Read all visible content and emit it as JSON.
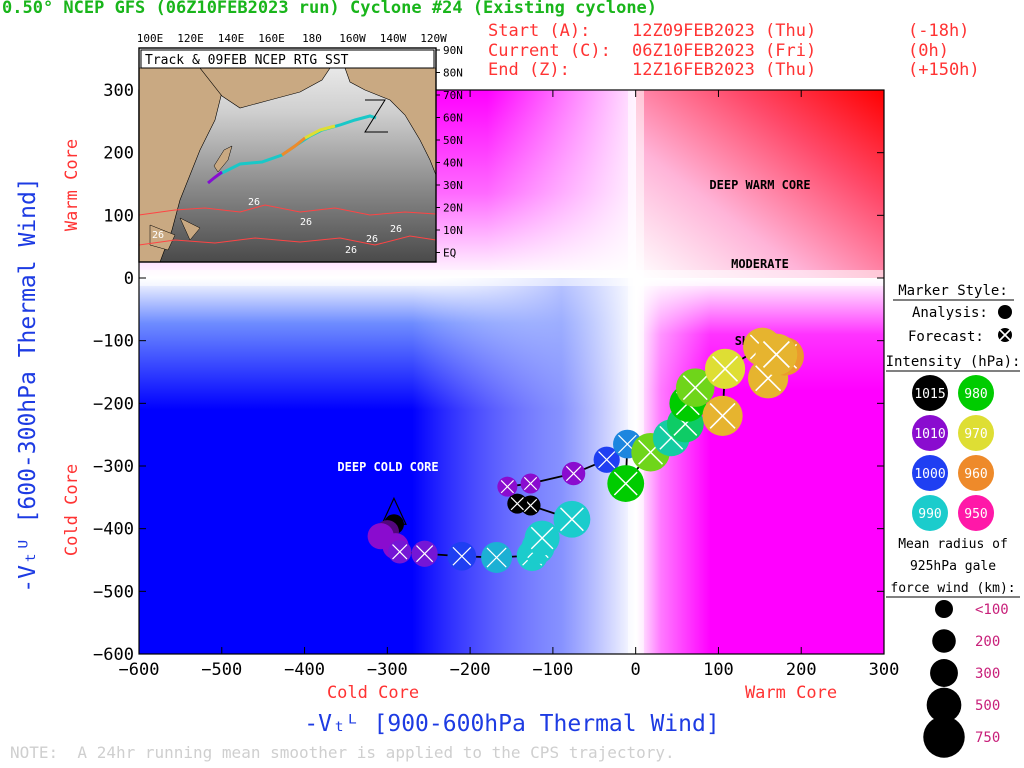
{
  "header": {
    "title": "0.50° NCEP GFS (06Z10FEB2023 run) Cyclone #24 (Existing cyclone)",
    "start": {
      "label": "Start (A):",
      "time": "12Z09FEB2023 (Thu)",
      "offset": "(-18h)"
    },
    "current": {
      "label": "Current (C):",
      "time": "06Z10FEB2023 (Fri)",
      "offset": "(0h)"
    },
    "end": {
      "label": "End (Z):",
      "time": "12Z16FEB2023 (Thu)",
      "offset": "(+150h)"
    }
  },
  "note": "NOTE:  A 24hr running mean smoother is applied to the CPS trajectory.",
  "chart_data": {
    "type": "scatter",
    "xlabel": "-Vₜᴸ [900-600hPa Thermal Wind]",
    "ylabel": "-Vₜᵁ [600-300hPa Thermal Wind]",
    "xlim": [
      -600,
      300
    ],
    "ylim": [
      -600,
      300
    ],
    "x_ticks": [
      -600,
      -500,
      -400,
      -300,
      -200,
      -100,
      0,
      100,
      200,
      300
    ],
    "y_ticks": [
      300,
      200,
      100,
      0,
      -100,
      -200,
      -300,
      -400,
      -500,
      -600
    ],
    "x_sublabels": {
      "cold": "Cold Core",
      "warm": "Warm Core"
    },
    "y_sublabels": {
      "cold": "Cold Core",
      "warm": "Warm Core"
    },
    "regions": {
      "deep_warm": "DEEP WARM CORE",
      "moderate": "MODERATE",
      "shallow": "SHALLOW",
      "deep_cold": "DEEP COLD CORE"
    },
    "track": [
      {
        "x": -292,
        "y": -393,
        "p": 1015,
        "r": 100,
        "t": "a",
        "mark": "A"
      },
      {
        "x": -300,
        "y": -405,
        "p": 1012,
        "r": 150,
        "t": "a"
      },
      {
        "x": -308,
        "y": -412,
        "p": 1010,
        "r": 200,
        "t": "a"
      },
      {
        "x": -290,
        "y": -428,
        "p": 1010,
        "r": 200,
        "t": "a"
      },
      {
        "x": -285,
        "y": -437,
        "p": 1008,
        "r": 150,
        "t": "f",
        "mark": "C"
      },
      {
        "x": -255,
        "y": -440,
        "p": 1008,
        "r": 200,
        "t": "f"
      },
      {
        "x": -210,
        "y": -444,
        "p": 1000,
        "r": 250,
        "t": "f"
      },
      {
        "x": -168,
        "y": -446,
        "p": 992,
        "r": 300,
        "t": "f"
      },
      {
        "x": -125,
        "y": -443,
        "p": 990,
        "r": 300,
        "t": "f"
      },
      {
        "x": -118,
        "y": -430,
        "p": 990,
        "r": 350,
        "t": "f"
      },
      {
        "x": -113,
        "y": -415,
        "p": 990,
        "r": 400,
        "t": "f"
      },
      {
        "x": -77,
        "y": -385,
        "p": 990,
        "r": 450,
        "t": "f"
      },
      {
        "x": -127,
        "y": -363,
        "p": 1015,
        "r": 100,
        "t": "f"
      },
      {
        "x": -143,
        "y": -360,
        "p": 1015,
        "r": 100,
        "t": "f"
      },
      {
        "x": -155,
        "y": -333,
        "p": 1010,
        "r": 100,
        "t": "f"
      },
      {
        "x": -127,
        "y": -328,
        "p": 1010,
        "r": 100,
        "t": "f"
      },
      {
        "x": -75,
        "y": -312,
        "p": 1010,
        "r": 150,
        "t": "f"
      },
      {
        "x": -35,
        "y": -290,
        "p": 1000,
        "r": 200,
        "t": "f"
      },
      {
        "x": -10,
        "y": -265,
        "p": 995,
        "r": 250,
        "t": "f"
      },
      {
        "x": -12,
        "y": -328,
        "p": 980,
        "r": 450,
        "t": "f"
      },
      {
        "x": 18,
        "y": -278,
        "p": 975,
        "r": 500,
        "t": "f"
      },
      {
        "x": 43,
        "y": -255,
        "p": 988,
        "r": 450,
        "t": "f"
      },
      {
        "x": 60,
        "y": -233,
        "p": 985,
        "r": 450,
        "t": "f"
      },
      {
        "x": 63,
        "y": -200,
        "p": 980,
        "r": 450,
        "t": "f"
      },
      {
        "x": 72,
        "y": -175,
        "p": 975,
        "r": 500,
        "t": "f"
      },
      {
        "x": 105,
        "y": -220,
        "p": 965,
        "r": 550,
        "t": "f"
      },
      {
        "x": 108,
        "y": -145,
        "p": 970,
        "r": 550,
        "t": "f"
      },
      {
        "x": 153,
        "y": -110,
        "p": 965,
        "r": 500,
        "t": "f"
      },
      {
        "x": 160,
        "y": -160,
        "p": 965,
        "r": 550,
        "t": "f"
      },
      {
        "x": 180,
        "y": -125,
        "p": 962,
        "r": 500,
        "t": "f"
      },
      {
        "x": 170,
        "y": -122,
        "p": 965,
        "r": 600,
        "t": "f",
        "mark": "Z"
      }
    ]
  },
  "inset": {
    "title": "Track & 09FEB NCEP RTG SST",
    "lon_labels": [
      "100E",
      "120E",
      "140E",
      "160E",
      "180",
      "160W",
      "140W",
      "120W"
    ],
    "lat_labels": [
      "90N",
      "80N",
      "70N",
      "60N",
      "50N",
      "40N",
      "30N",
      "20N",
      "10N",
      "EQ"
    ],
    "sst_labels": [
      "26",
      "26",
      "26",
      "26",
      "26",
      "26"
    ]
  },
  "legend": {
    "marker_style": "Marker Style:",
    "analysis": "Analysis:",
    "forecast": "Forecast:",
    "intensity": "Intensity (hPa):",
    "intensities": [
      {
        "p": "1015",
        "color": "#000000"
      },
      {
        "p": "980",
        "color": "#00cc00"
      },
      {
        "p": "1010",
        "color": "#8a0ccf"
      },
      {
        "p": "970",
        "color": "#dede34"
      },
      {
        "p": "1000",
        "color": "#1f3ff2"
      },
      {
        "p": "960",
        "color": "#ee8a2a"
      },
      {
        "p": "990",
        "color": "#1bcccc"
      },
      {
        "p": "950",
        "color": "#ff18a8"
      }
    ],
    "radius_title": [
      "Mean radius of",
      "925hPa gale",
      "force wind (km):"
    ],
    "radii": [
      {
        "label": "<100",
        "r": 100
      },
      {
        "label": "200",
        "r": 200
      },
      {
        "label": "300",
        "r": 300
      },
      {
        "label": "500",
        "r": 500
      },
      {
        "label": "750",
        "r": 750
      }
    ]
  }
}
